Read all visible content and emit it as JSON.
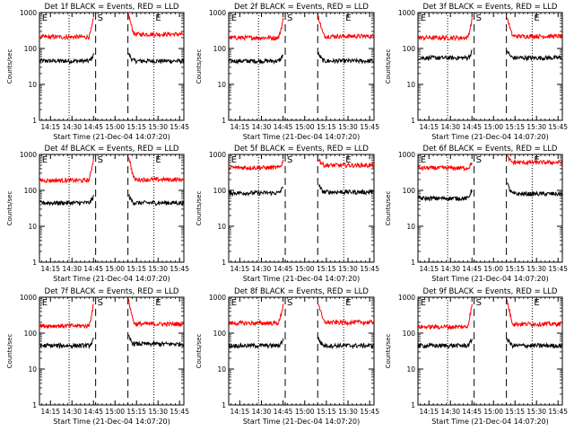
{
  "chart_data": [
    {
      "type": "line",
      "title": "Det 1f BLACK = Events, RED = LLD",
      "ylabel": "Counts/sec",
      "xlabel": "Start Time (21-Dec-04 14:07:20)",
      "x_ticks": [
        "14:15",
        "14:30",
        "14:45",
        "15:00",
        "15:15",
        "15:30",
        "15:45"
      ],
      "y_ticks": [
        "1",
        "10",
        "100",
        "1000"
      ],
      "yscale": "log",
      "ylim": [
        1,
        1000
      ],
      "markers": [
        "E",
        "S",
        "E"
      ],
      "series": [
        {
          "name": "BLACK",
          "color": "#000000",
          "pre": 45,
          "post": 45,
          "rise": 1.6
        },
        {
          "name": "RED",
          "color": "#ff0000",
          "pre": 210,
          "post": 250,
          "rise": 3.5
        }
      ]
    },
    {
      "type": "line",
      "title": "Det 2f BLACK = Events, RED = LLD",
      "ylabel": "Counts/sec",
      "xlabel": "Start Time (21-Dec-04 14:07:20)",
      "x_ticks": [
        "14:15",
        "14:30",
        "14:45",
        "15:00",
        "15:15",
        "15:30",
        "15:45"
      ],
      "y_ticks": [
        "1",
        "10",
        "100",
        "1000"
      ],
      "yscale": "log",
      "ylim": [
        1,
        1000
      ],
      "markers": [
        "E",
        "S",
        "E"
      ],
      "series": [
        {
          "name": "BLACK",
          "color": "#000000",
          "pre": 45,
          "post": 45,
          "rise": 1.6
        },
        {
          "name": "RED",
          "color": "#ff0000",
          "pre": 200,
          "post": 220,
          "rise": 3.5
        }
      ]
    },
    {
      "type": "line",
      "title": "Det 3f BLACK = Events, RED = LLD",
      "ylabel": "Counts/sec",
      "xlabel": "Start Time (21-Dec-04 14:07:20)",
      "x_ticks": [
        "14:15",
        "14:30",
        "14:45",
        "15:00",
        "15:15",
        "15:30",
        "15:45"
      ],
      "y_ticks": [
        "1",
        "10",
        "100",
        "1000"
      ],
      "yscale": "log",
      "ylim": [
        1,
        1000
      ],
      "markers": [
        "E",
        "S",
        "E"
      ],
      "series": [
        {
          "name": "BLACK",
          "color": "#000000",
          "pre": 55,
          "post": 55,
          "rise": 1.6
        },
        {
          "name": "RED",
          "color": "#ff0000",
          "pre": 200,
          "post": 220,
          "rise": 3.5
        }
      ]
    },
    {
      "type": "line",
      "title": "Det 4f BLACK = Events, RED = LLD",
      "ylabel": "Counts/sec",
      "xlabel": "Start Time (21-Dec-04 14:07:20)",
      "x_ticks": [
        "14:15",
        "14:30",
        "14:45",
        "15:00",
        "15:15",
        "15:30",
        "15:45"
      ],
      "y_ticks": [
        "1",
        "10",
        "100",
        "1000"
      ],
      "yscale": "log",
      "ylim": [
        1,
        1000
      ],
      "markers": [
        "E",
        "S",
        "E"
      ],
      "series": [
        {
          "name": "BLACK",
          "color": "#000000",
          "pre": 45,
          "post": 45,
          "rise": 1.6
        },
        {
          "name": "RED",
          "color": "#ff0000",
          "pre": 190,
          "post": 200,
          "rise": 4.5
        }
      ]
    },
    {
      "type": "line",
      "title": "Det 5f BLACK = Events, RED = LLD",
      "ylabel": "Counts/sec",
      "xlabel": "Start Time (21-Dec-04 14:07:20)",
      "x_ticks": [
        "14:15",
        "14:30",
        "14:45",
        "15:00",
        "15:15",
        "15:30",
        "15:45"
      ],
      "y_ticks": [
        "1",
        "10",
        "100",
        "1000"
      ],
      "yscale": "log",
      "ylim": [
        1,
        1000
      ],
      "markers": [
        "E",
        "S",
        "E"
      ],
      "series": [
        {
          "name": "BLACK",
          "color": "#000000",
          "pre": 85,
          "post": 90,
          "rise": 1.6
        },
        {
          "name": "RED",
          "color": "#ff0000",
          "pre": 430,
          "post": 500,
          "rise": 1.6
        }
      ]
    },
    {
      "type": "line",
      "title": "Det 6f BLACK = Events, RED = LLD",
      "ylabel": "Counts/sec",
      "xlabel": "Start Time (21-Dec-04 14:07:20)",
      "x_ticks": [
        "14:15",
        "14:30",
        "14:45",
        "15:00",
        "15:15",
        "15:30",
        "15:45"
      ],
      "y_ticks": [
        "1",
        "10",
        "100",
        "1000"
      ],
      "yscale": "log",
      "ylim": [
        1,
        1000
      ],
      "markers": [
        "E",
        "S",
        "E"
      ],
      "series": [
        {
          "name": "BLACK",
          "color": "#000000",
          "pre": 60,
          "post": 80,
          "rise": 2.0
        },
        {
          "name": "RED",
          "color": "#ff0000",
          "pre": 420,
          "post": 600,
          "rise": 1.5
        }
      ]
    },
    {
      "type": "line",
      "title": "Det 7f BLACK = Events, RED = LLD",
      "ylabel": "Counts/sec",
      "xlabel": "Start Time (21-Dec-04 14:07:20)",
      "x_ticks": [
        "14:15",
        "14:30",
        "14:45",
        "15:00",
        "15:15",
        "15:30",
        "15:45"
      ],
      "y_ticks": [
        "1",
        "10",
        "100",
        "1000"
      ],
      "yscale": "log",
      "ylim": [
        1,
        1000
      ],
      "markers": [
        "E",
        "S",
        "E"
      ],
      "series": [
        {
          "name": "BLACK",
          "color": "#000000",
          "pre": 45,
          "post": 50,
          "rise": 1.6
        },
        {
          "name": "RED",
          "color": "#ff0000",
          "pre": 160,
          "post": 180,
          "rise": 4.5
        }
      ]
    },
    {
      "type": "line",
      "title": "Det 8f BLACK = Events, RED = LLD",
      "ylabel": "Counts/sec",
      "xlabel": "Start Time (21-Dec-04 14:07:20)",
      "x_ticks": [
        "14:15",
        "14:30",
        "14:45",
        "15:00",
        "15:15",
        "15:30",
        "15:45"
      ],
      "y_ticks": [
        "1",
        "10",
        "100",
        "1000"
      ],
      "yscale": "log",
      "ylim": [
        1,
        1000
      ],
      "markers": [
        "E",
        "S",
        "E"
      ],
      "series": [
        {
          "name": "BLACK",
          "color": "#000000",
          "pre": 45,
          "post": 45,
          "rise": 1.6
        },
        {
          "name": "RED",
          "color": "#ff0000",
          "pre": 190,
          "post": 200,
          "rise": 3.5
        }
      ]
    },
    {
      "type": "line",
      "title": "Det 9f BLACK = Events, RED = LLD",
      "ylabel": "Counts/sec",
      "xlabel": "Start Time (21-Dec-04 14:07:20)",
      "x_ticks": [
        "14:15",
        "14:30",
        "14:45",
        "15:00",
        "15:15",
        "15:30",
        "15:45"
      ],
      "y_ticks": [
        "1",
        "10",
        "100",
        "1000"
      ],
      "yscale": "log",
      "ylim": [
        1,
        1000
      ],
      "markers": [
        "E",
        "S",
        "E"
      ],
      "series": [
        {
          "name": "BLACK",
          "color": "#000000",
          "pre": 45,
          "post": 45,
          "rise": 1.6
        },
        {
          "name": "RED",
          "color": "#ff0000",
          "pre": 150,
          "post": 180,
          "rise": 4.5
        }
      ]
    }
  ]
}
